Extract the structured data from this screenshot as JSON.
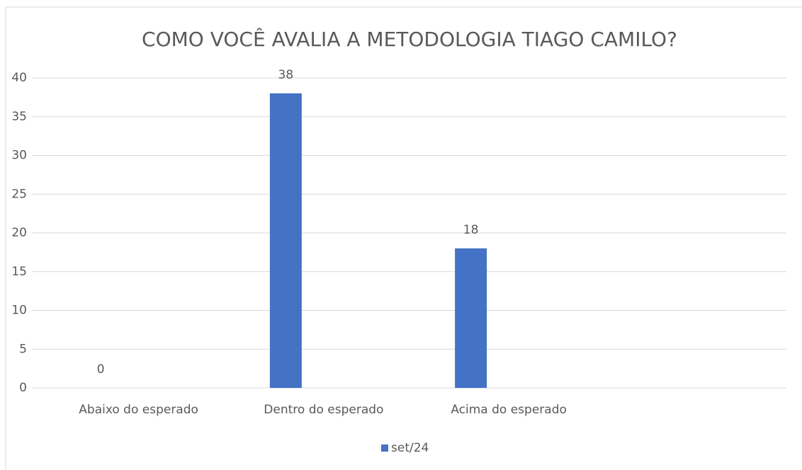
{
  "chart_data": {
    "type": "bar",
    "title": "COMO VOCÊ AVALIA A METODOLOGIA TIAGO CAMILO?",
    "categories": [
      "Abaixo do esperado",
      "Dentro do esperado",
      "Acima do esperado",
      null
    ],
    "series": [
      {
        "name": "set/24",
        "color": "#4472c4",
        "values": [
          0,
          38,
          18,
          null
        ]
      }
    ],
    "ylim": [
      0,
      40
    ],
    "yticks": [
      0,
      5,
      10,
      15,
      20,
      25,
      30,
      35,
      40
    ],
    "grid": true,
    "legend": "bottom"
  }
}
